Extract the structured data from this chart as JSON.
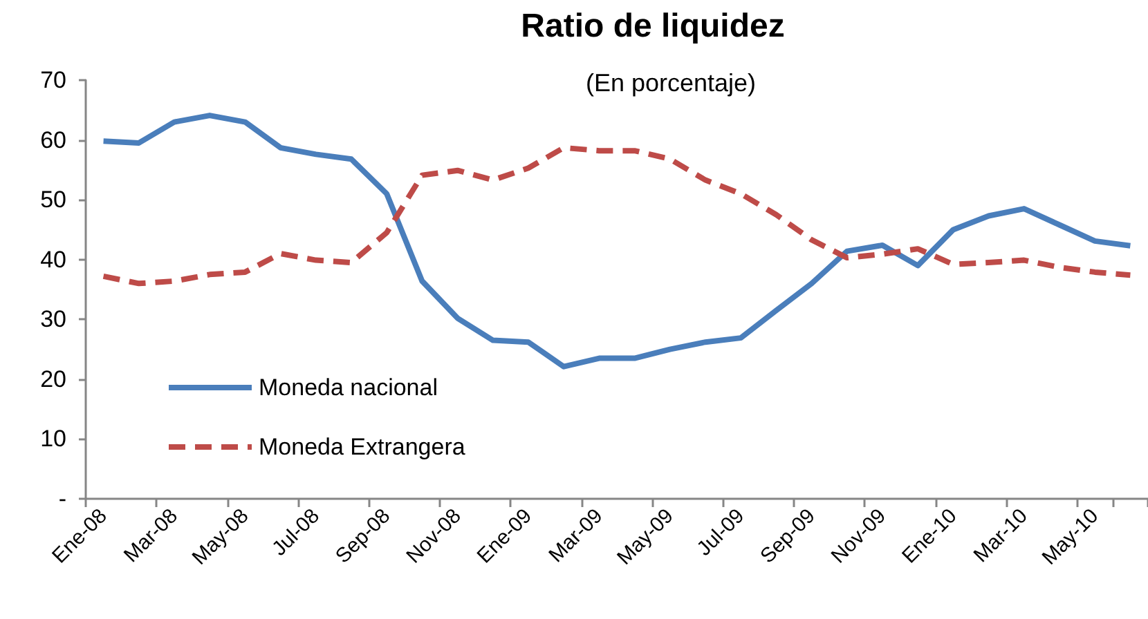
{
  "chart_data": {
    "type": "line",
    "title": "Ratio de liquidez",
    "subtitle": "(En porcentaje)",
    "categories": [
      "Ene-08",
      null,
      "Mar-08",
      null,
      "May-08",
      null,
      "Jul-08",
      null,
      "Sep-08",
      null,
      "Nov-08",
      null,
      "Ene-09",
      null,
      "Mar-09",
      null,
      "May-09",
      null,
      "Jul-09",
      null,
      "Sep-09",
      null,
      "Nov-09",
      null,
      "Ene-10",
      null,
      "Mar-10",
      null,
      "May-10",
      null
    ],
    "series": [
      {
        "name": "Moneda nacional",
        "color": "#4a7ebb",
        "line_style": "solid",
        "values": [
          59.8,
          59.5,
          63.0,
          64.1,
          63.0,
          58.7,
          57.6,
          56.8,
          51.0,
          36.4,
          30.2,
          26.5,
          26.2,
          22.1,
          23.5,
          23.5,
          25.0,
          26.2,
          26.9,
          31.5,
          36.0,
          41.4,
          42.4,
          39.0,
          45.0,
          47.3,
          48.5,
          45.8,
          43.1,
          42.3
        ]
      },
      {
        "name": "Moneda Extrangera",
        "color": "#be4b48",
        "line_style": "dashed",
        "values": [
          37.2,
          36.0,
          36.4,
          37.5,
          37.9,
          41.0,
          39.9,
          39.5,
          44.5,
          54.1,
          54.9,
          53.3,
          55.3,
          58.7,
          58.2,
          58.2,
          56.8,
          53.3,
          51.0,
          47.5,
          43.3,
          40.3,
          40.9,
          41.8,
          39.2,
          39.5,
          39.9,
          38.7,
          37.9,
          37.4
        ]
      }
    ],
    "ylim": [
      0,
      70
    ],
    "yticks": [
      {
        "value": 0,
        "label": "-"
      },
      10,
      20,
      30,
      40,
      50,
      60,
      70
    ],
    "grid": false,
    "legend": "bottom left",
    "marker": "none"
  }
}
